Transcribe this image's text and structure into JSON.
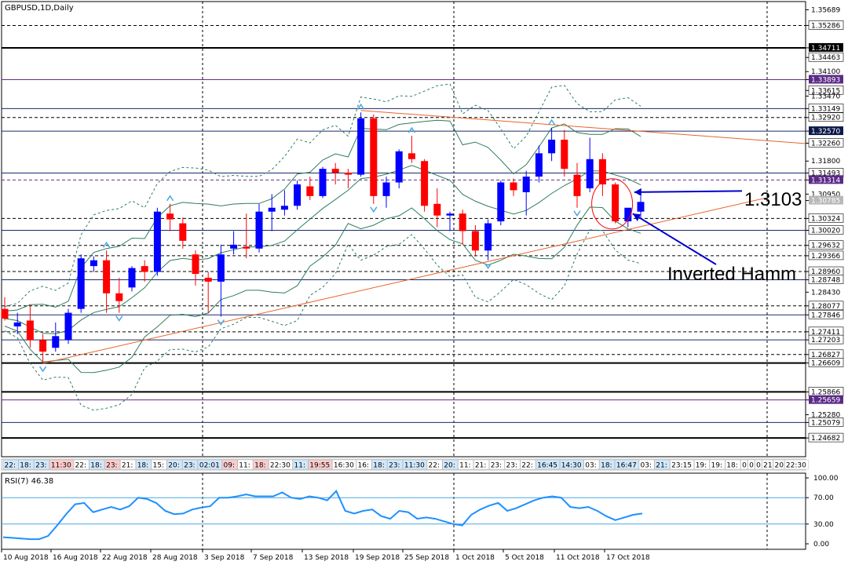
{
  "chart_data": {
    "type": "candlestick",
    "title": "GBPUSD,1D,Daily",
    "ylim": [
      1.242,
      1.359
    ],
    "price_labels": [
      {
        "value": "1.35689",
        "style": "plain",
        "line": "none"
      },
      {
        "value": "1.35286",
        "style": "highlight",
        "line": "dashed"
      },
      {
        "value": "1.34711",
        "style": "dark",
        "line": "thick"
      },
      {
        "value": "1.34463",
        "style": "highlight",
        "line": "none"
      },
      {
        "value": "1.34100",
        "style": "plain",
        "line": "none"
      },
      {
        "value": "1.33893",
        "style": "purple",
        "line": "purple"
      },
      {
        "value": "1.33615",
        "style": "highlight",
        "line": "none"
      },
      {
        "value": "1.33470",
        "style": "plain",
        "line": "none"
      },
      {
        "value": "1.33149",
        "style": "highlight",
        "line": "navy"
      },
      {
        "value": "1.32920",
        "style": "highlight",
        "line": "dashed"
      },
      {
        "value": "1.32570",
        "style": "navy",
        "line": "navy"
      },
      {
        "value": "1.32260",
        "style": "highlight",
        "line": "none"
      },
      {
        "value": "1.31800",
        "style": "plain",
        "line": "none"
      },
      {
        "value": "1.31493",
        "style": "highlight",
        "line": "navy"
      },
      {
        "value": "1.31314",
        "style": "purple",
        "line": "purple-dashed"
      },
      {
        "value": "1.30950",
        "style": "plain",
        "line": "none"
      },
      {
        "value": "1.30785",
        "style": "grey",
        "line": "none"
      },
      {
        "value": "1.30324",
        "style": "highlight",
        "line": "dashed"
      },
      {
        "value": "1.30020",
        "style": "highlight",
        "line": "navy"
      },
      {
        "value": "1.29632",
        "style": "highlight",
        "line": "dashed"
      },
      {
        "value": "1.29366",
        "style": "highlight",
        "line": "dashed"
      },
      {
        "value": "1.28960",
        "style": "highlight",
        "line": "dashed"
      },
      {
        "value": "1.28748",
        "style": "highlight",
        "line": "navy"
      },
      {
        "value": "1.28430",
        "style": "plain",
        "line": "none"
      },
      {
        "value": "1.28077",
        "style": "highlight",
        "line": "dashed"
      },
      {
        "value": "1.27846",
        "style": "highlight",
        "line": "navy"
      },
      {
        "value": "1.27411",
        "style": "highlight",
        "line": "dashed"
      },
      {
        "value": "1.27203",
        "style": "highlight",
        "line": "navy"
      },
      {
        "value": "1.26827",
        "style": "highlight",
        "line": "dashed"
      },
      {
        "value": "1.26609",
        "style": "highlight",
        "line": "thick"
      },
      {
        "value": "1.25866",
        "style": "highlight",
        "line": "thick"
      },
      {
        "value": "1.25659",
        "style": "purple",
        "line": "purple"
      },
      {
        "value": "1.25280",
        "style": "plain",
        "line": "none"
      },
      {
        "value": "1.25079",
        "style": "highlight",
        "line": "navy"
      },
      {
        "value": "1.24682",
        "style": "highlight",
        "line": "thick"
      }
    ],
    "candles": [
      {
        "o": 1.28,
        "h": 1.283,
        "l": 1.277,
        "c": 1.2775
      },
      {
        "o": 1.2755,
        "h": 1.279,
        "l": 1.2735,
        "c": 1.2765
      },
      {
        "o": 1.277,
        "h": 1.281,
        "l": 1.27,
        "c": 1.272
      },
      {
        "o": 1.272,
        "h": 1.2735,
        "l": 1.266,
        "c": 1.269
      },
      {
        "o": 1.27,
        "h": 1.2765,
        "l": 1.269,
        "c": 1.273
      },
      {
        "o": 1.272,
        "h": 1.28,
        "l": 1.271,
        "c": 1.279
      },
      {
        "o": 1.28,
        "h": 1.294,
        "l": 1.279,
        "c": 1.293
      },
      {
        "o": 1.291,
        "h": 1.2935,
        "l": 1.2895,
        "c": 1.2925
      },
      {
        "o": 1.2925,
        "h": 1.295,
        "l": 1.279,
        "c": 1.284
      },
      {
        "o": 1.284,
        "h": 1.288,
        "l": 1.279,
        "c": 1.282
      },
      {
        "o": 1.2855,
        "h": 1.291,
        "l": 1.2845,
        "c": 1.2905
      },
      {
        "o": 1.291,
        "h": 1.2925,
        "l": 1.287,
        "c": 1.2895
      },
      {
        "o": 1.2895,
        "h": 1.306,
        "l": 1.2885,
        "c": 1.305
      },
      {
        "o": 1.3045,
        "h": 1.307,
        "l": 1.3,
        "c": 1.303
      },
      {
        "o": 1.302,
        "h": 1.3035,
        "l": 1.2955,
        "c": 1.2975
      },
      {
        "o": 1.294,
        "h": 1.295,
        "l": 1.286,
        "c": 1.289
      },
      {
        "o": 1.288,
        "h": 1.2895,
        "l": 1.279,
        "c": 1.287
      },
      {
        "o": 1.287,
        "h": 1.2965,
        "l": 1.278,
        "c": 1.294
      },
      {
        "o": 1.2955,
        "h": 1.3,
        "l": 1.294,
        "c": 1.2965
      },
      {
        "o": 1.296,
        "h": 1.3045,
        "l": 1.293,
        "c": 1.2955
      },
      {
        "o": 1.2955,
        "h": 1.307,
        "l": 1.2945,
        "c": 1.305
      },
      {
        "o": 1.305,
        "h": 1.3095,
        "l": 1.3,
        "c": 1.306
      },
      {
        "o": 1.3055,
        "h": 1.3105,
        "l": 1.304,
        "c": 1.3065
      },
      {
        "o": 1.3065,
        "h": 1.313,
        "l": 1.3055,
        "c": 1.312
      },
      {
        "o": 1.3115,
        "h": 1.314,
        "l": 1.308,
        "c": 1.309
      },
      {
        "o": 1.309,
        "h": 1.3165,
        "l": 1.3085,
        "c": 1.316
      },
      {
        "o": 1.316,
        "h": 1.3175,
        "l": 1.312,
        "c": 1.315
      },
      {
        "o": 1.315,
        "h": 1.316,
        "l": 1.311,
        "c": 1.3145
      },
      {
        "o": 1.3145,
        "h": 1.3305,
        "l": 1.314,
        "c": 1.329
      },
      {
        "o": 1.329,
        "h": 1.33,
        "l": 1.307,
        "c": 1.309
      },
      {
        "o": 1.309,
        "h": 1.314,
        "l": 1.306,
        "c": 1.3125
      },
      {
        "o": 1.3125,
        "h": 1.321,
        "l": 1.311,
        "c": 1.3205
      },
      {
        "o": 1.32,
        "h": 1.3245,
        "l": 1.3175,
        "c": 1.3185
      },
      {
        "o": 1.318,
        "h": 1.3185,
        "l": 1.305,
        "c": 1.3065
      },
      {
        "o": 1.307,
        "h": 1.311,
        "l": 1.301,
        "c": 1.304
      },
      {
        "o": 1.304,
        "h": 1.305,
        "l": 1.3,
        "c": 1.3045
      },
      {
        "o": 1.3045,
        "h": 1.3055,
        "l": 1.2965,
        "c": 1.3
      },
      {
        "o": 1.3,
        "h": 1.3015,
        "l": 1.2935,
        "c": 1.295
      },
      {
        "o": 1.295,
        "h": 1.303,
        "l": 1.2925,
        "c": 1.302
      },
      {
        "o": 1.3025,
        "h": 1.313,
        "l": 1.3015,
        "c": 1.3125
      },
      {
        "o": 1.3125,
        "h": 1.3135,
        "l": 1.309,
        "c": 1.3105
      },
      {
        "o": 1.31,
        "h": 1.3155,
        "l": 1.304,
        "c": 1.314
      },
      {
        "o": 1.314,
        "h": 1.322,
        "l": 1.3125,
        "c": 1.32
      },
      {
        "o": 1.32,
        "h": 1.3265,
        "l": 1.318,
        "c": 1.3235
      },
      {
        "o": 1.3235,
        "h": 1.326,
        "l": 1.314,
        "c": 1.316
      },
      {
        "o": 1.3145,
        "h": 1.3175,
        "l": 1.306,
        "c": 1.309
      },
      {
        "o": 1.311,
        "h": 1.324,
        "l": 1.31,
        "c": 1.3185
      },
      {
        "o": 1.3185,
        "h": 1.32,
        "l": 1.309,
        "c": 1.312
      },
      {
        "o": 1.312,
        "h": 1.3125,
        "l": 1.302,
        "c": 1.3025
      },
      {
        "o": 1.3025,
        "h": 1.305,
        "l": 1.301,
        "c": 1.306
      },
      {
        "o": 1.305,
        "h": 1.309,
        "l": 1.3035,
        "c": 1.3075
      }
    ],
    "rsi": {
      "label": "RSI(7) 46.38",
      "levels": [
        "100.00",
        "70.00",
        "30.00",
        "0.00"
      ],
      "values": [
        10,
        9,
        8,
        7,
        7,
        12,
        28,
        45,
        60,
        62,
        48,
        52,
        56,
        52,
        57,
        70,
        68,
        62,
        50,
        45,
        46,
        52,
        55,
        57,
        70,
        70,
        72,
        75,
        72,
        72,
        72,
        78,
        70,
        68,
        72,
        70,
        66,
        80,
        50,
        46,
        50,
        52,
        42,
        38,
        50,
        48,
        38,
        40,
        38,
        34,
        30,
        28,
        44,
        52,
        58,
        62,
        50,
        54,
        60,
        66,
        70,
        72,
        70,
        56,
        54,
        56,
        50,
        42,
        36,
        40,
        44,
        46
      ],
      "overbought": 70,
      "oversold": 30
    },
    "x_labels": [
      "10 Aug 2018",
      "16 Aug 2018",
      "22 Aug 2018",
      "28 Aug 2018",
      "3 Sep 2018",
      "7 Sep 2018",
      "13 Sep 2018",
      "19 Sep 2018",
      "25 Sep 2018",
      "1 Oct 2018",
      "5 Oct 2018",
      "11 Oct 2018",
      "17 Oct 2018"
    ],
    "annotations": {
      "price_note": "1.3103",
      "pattern_note": "Inverted Hamm"
    },
    "time_strip": [
      {
        "t": "22:",
        "bg": "#cfe8ff"
      },
      {
        "t": "18:",
        "bg": "#cfe8ff"
      },
      {
        "t": "23:",
        "bg": "#cfe8ff"
      },
      {
        "t": "11:30",
        "bg": "#ffcccc"
      },
      {
        "t": "22:",
        "bg": "#ffffff"
      },
      {
        "t": "18:",
        "bg": "#cfe8ff"
      },
      {
        "t": "23:",
        "bg": "#ffcccc"
      },
      {
        "t": "21:",
        "bg": "#ffffff"
      },
      {
        "t": "18:",
        "bg": "#cfe8ff"
      },
      {
        "t": "15:",
        "bg": "#ffffff"
      },
      {
        "t": "20:",
        "bg": "#cfe8ff"
      },
      {
        "t": "23:",
        "bg": "#cfe8ff"
      },
      {
        "t": "02:01",
        "bg": "#cfe8ff"
      },
      {
        "t": "09:",
        "bg": "#ffcccc"
      },
      {
        "t": "11:",
        "bg": "#ffffff"
      },
      {
        "t": "18:",
        "bg": "#ffcccc"
      },
      {
        "t": "22:30",
        "bg": "#ffffff"
      },
      {
        "t": "11:",
        "bg": "#cfe8ff"
      },
      {
        "t": "19:55",
        "bg": "#ffcccc"
      },
      {
        "t": "16:30",
        "bg": "#ffffff"
      },
      {
        "t": "16:",
        "bg": "#ffffff"
      },
      {
        "t": "18:",
        "bg": "#cfe8ff"
      },
      {
        "t": "23:",
        "bg": "#cfe8ff"
      },
      {
        "t": "11:30",
        "bg": "#cfe8ff"
      },
      {
        "t": "22:",
        "bg": "#ffffff"
      },
      {
        "t": "20:",
        "bg": "#cfe8ff"
      },
      {
        "t": "11:",
        "bg": "#ffffff"
      },
      {
        "t": "21:",
        "bg": "#ffffff"
      },
      {
        "t": "23:",
        "bg": "#ffffff"
      },
      {
        "t": "23:",
        "bg": "#ffffff"
      },
      {
        "t": "22:",
        "bg": "#ffffff"
      },
      {
        "t": "16:45",
        "bg": "#cfe8ff"
      },
      {
        "t": "14:30",
        "bg": "#cfe8ff"
      },
      {
        "t": "03:",
        "bg": "#ffffff"
      },
      {
        "t": "18:",
        "bg": "#cfe8ff"
      },
      {
        "t": "16:47",
        "bg": "#cfe8ff"
      },
      {
        "t": "03:",
        "bg": "#ffffff"
      },
      {
        "t": "21:",
        "bg": "#cfe8ff"
      },
      {
        "t": "23:15",
        "bg": "#ffffff"
      },
      {
        "t": "19:",
        "bg": "#ffffff"
      },
      {
        "t": "19:",
        "bg": "#ffffff"
      },
      {
        "t": "18:",
        "bg": "#ffffff"
      },
      {
        "t": "0",
        "bg": "#ffffff"
      },
      {
        "t": "0",
        "bg": "#ffffff"
      },
      {
        "t": "0",
        "bg": "#ffffff"
      },
      {
        "t": "21",
        "bg": "#ffffff"
      },
      {
        "t": "20",
        "bg": "#ffffff"
      },
      {
        "t": "22:30",
        "bg": "#ffffff"
      }
    ],
    "colors": {
      "bull": "#0000ff",
      "bear": "#ff0000",
      "band": "#2e7d5b",
      "trend": "#e8642c",
      "rsi": "#1e90ff",
      "level": "#1a2a6c",
      "label_bg": "#0b1a4a"
    }
  }
}
